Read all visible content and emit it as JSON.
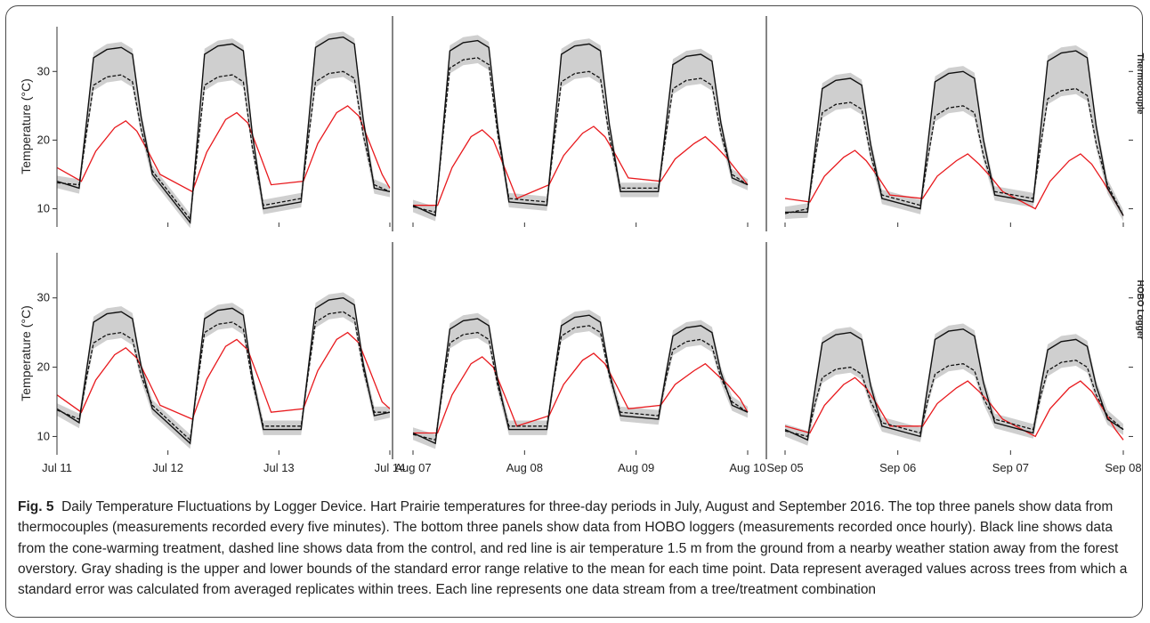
{
  "figure": {
    "fig_label": "Fig. 5",
    "caption": "Daily Temperature Fluctuations by Logger Device. Hart Prairie temperatures for three-day periods in July, August and September 2016. The top three panels show data from thermocouples (measurements recorded every five minutes). The bottom three panels show data from HOBO loggers (measurements recorded once hourly). Black line shows data from the cone-warming treatment, dashed line shows data from the control, and red line is air temperature 1.5 m from the ground from a nearby weather station away from the forest overstory. Gray shading is the upper and lower bounds of the standard error range relative to the mean for each time point. Data represent averaged values across trees from which a standard error was calculated from averaged replicates within trees. Each line represents one data stream from a tree/treatment combination"
  },
  "colors": {
    "treatment": "#111111",
    "control": "#111111",
    "air": "#e8191d",
    "se_band": "#cfcfcf",
    "axis": "#333333"
  },
  "chart_data": {
    "type": "line",
    "ylabel": "Temperature (°C)",
    "ylim": [
      8,
      36
    ],
    "yticks": [
      10,
      20,
      30
    ],
    "row_labels": [
      "Thermocouple",
      "HOBO Logger"
    ],
    "panels": [
      {
        "row": "Thermocouple",
        "period": "July",
        "xticks": [
          "Jul 11",
          "Jul 12",
          "Jul 13",
          "Jul 14"
        ],
        "days": [
          {
            "night": 13.0,
            "peak_treatment": 33.5,
            "peak_control": 29.5,
            "peak_air": 22.8,
            "air_night": 14.0
          },
          {
            "night": 8.0,
            "peak_treatment": 34.0,
            "peak_control": 29.5,
            "peak_air": 24.0,
            "air_night": 12.5
          },
          {
            "night": 11.0,
            "peak_treatment": 35.0,
            "peak_control": 30.0,
            "peak_air": 25.0,
            "air_night": 14.0
          }
        ],
        "start": {
          "treatment": 14.0,
          "air": 16.0
        },
        "end": {
          "treatment": 12.5,
          "air": 13.0
        }
      },
      {
        "row": "Thermocouple",
        "period": "August",
        "xticks": [
          "Aug 07",
          "Aug 08",
          "Aug 09",
          "Aug 10"
        ],
        "days": [
          {
            "night": 9.0,
            "peak_treatment": 34.5,
            "peak_control": 32.0,
            "peak_air": 21.5,
            "air_night": 10.5
          },
          {
            "night": 10.5,
            "peak_treatment": 34.0,
            "peak_control": 30.0,
            "peak_air": 22.0,
            "air_night": 13.5
          },
          {
            "night": 12.5,
            "peak_treatment": 32.5,
            "peak_control": 29.0,
            "peak_air": 20.5,
            "air_night": 14.0
          }
        ],
        "start": {
          "treatment": 10.5,
          "air": 10.5
        },
        "end": {
          "treatment": 13.5,
          "air": 13.5
        }
      },
      {
        "row": "Thermocouple",
        "period": "September",
        "xticks": [
          "Sep 05",
          "Sep 06",
          "Sep 07",
          "Sep 08"
        ],
        "days": [
          {
            "night": 9.5,
            "peak_treatment": 29.0,
            "peak_control": 25.5,
            "peak_air": 18.5,
            "air_night": 11.0
          },
          {
            "night": 10.0,
            "peak_treatment": 30.0,
            "peak_control": 25.0,
            "peak_air": 18.0,
            "air_night": 11.5
          },
          {
            "night": 11.0,
            "peak_treatment": 33.0,
            "peak_control": 27.5,
            "peak_air": 18.0,
            "air_night": 10.0
          }
        ],
        "start": {
          "treatment": 9.5,
          "air": 11.5
        },
        "end": {
          "treatment": 9.0,
          "air": 9.0
        }
      },
      {
        "row": "HOBO Logger",
        "period": "July",
        "xticks": [
          "Jul 11",
          "Jul 12",
          "Jul 13",
          "Jul 14"
        ],
        "days": [
          {
            "night": 12.0,
            "peak_treatment": 28.0,
            "peak_control": 25.0,
            "peak_air": 22.8,
            "air_night": 13.5
          },
          {
            "night": 9.0,
            "peak_treatment": 28.5,
            "peak_control": 26.5,
            "peak_air": 24.0,
            "air_night": 12.5
          },
          {
            "night": 11.0,
            "peak_treatment": 30.0,
            "peak_control": 28.0,
            "peak_air": 25.0,
            "air_night": 14.0
          }
        ],
        "start": {
          "treatment": 14.0,
          "air": 16.0
        },
        "end": {
          "treatment": 13.5,
          "air": 14.0
        }
      },
      {
        "row": "HOBO Logger",
        "period": "August",
        "xticks": [
          "Aug 07",
          "Aug 08",
          "Aug 09",
          "Aug 10"
        ],
        "days": [
          {
            "night": 9.0,
            "peak_treatment": 27.0,
            "peak_control": 25.0,
            "peak_air": 21.5,
            "air_night": 10.5
          },
          {
            "night": 11.0,
            "peak_treatment": 27.5,
            "peak_control": 26.0,
            "peak_air": 22.0,
            "air_night": 13.0
          },
          {
            "night": 12.5,
            "peak_treatment": 26.0,
            "peak_control": 24.0,
            "peak_air": 20.5,
            "air_night": 14.5
          }
        ],
        "start": {
          "treatment": 10.5,
          "air": 10.5
        },
        "end": {
          "treatment": 13.5,
          "air": 13.5
        }
      },
      {
        "row": "HOBO Logger",
        "period": "September",
        "xticks": [
          "Sep 05",
          "Sep 06",
          "Sep 07",
          "Sep 08"
        ],
        "days": [
          {
            "night": 9.5,
            "peak_treatment": 25.0,
            "peak_control": 20.0,
            "peak_air": 18.5,
            "air_night": 10.5
          },
          {
            "night": 10.0,
            "peak_treatment": 25.5,
            "peak_control": 20.5,
            "peak_air": 18.0,
            "air_night": 11.5
          },
          {
            "night": 10.5,
            "peak_treatment": 24.0,
            "peak_control": 21.0,
            "peak_air": 18.0,
            "air_night": 10.0
          }
        ],
        "start": {
          "treatment": 11.0,
          "air": 11.5
        },
        "end": {
          "treatment": 11.0,
          "air": 9.5
        }
      }
    ]
  }
}
